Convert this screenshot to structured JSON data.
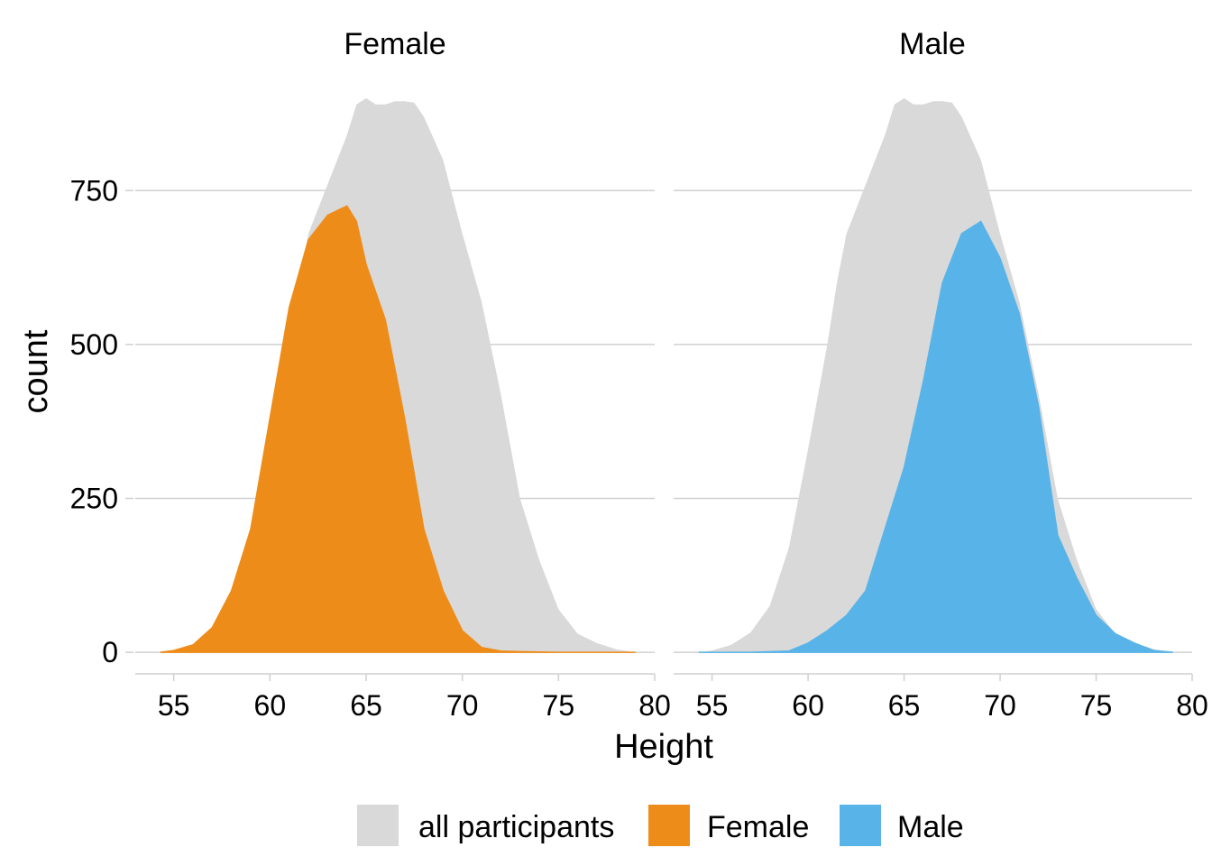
{
  "chart_data": {
    "type": "area",
    "xlabel": "Height",
    "ylabel": "count",
    "xlim": [
      53,
      80
    ],
    "ylim": [
      -35,
      935
    ],
    "x_ticks": [
      55,
      60,
      65,
      70,
      75,
      80
    ],
    "x_tick_labels": [
      "55",
      "60",
      "65",
      "70",
      "75",
      "80"
    ],
    "y_ticks": [
      0,
      250,
      500,
      750
    ],
    "y_tick_labels": [
      "0",
      "250",
      "500",
      "750"
    ],
    "grid": true,
    "legend_position": "bottom",
    "legend": [
      {
        "label": "all participants",
        "color": "#D9D9D9"
      },
      {
        "label": "Female",
        "color": "#EE8C1A"
      },
      {
        "label": "Male",
        "color": "#58B4E8"
      }
    ],
    "background_series": {
      "name": "all participants",
      "color": "#D9D9D9",
      "points": [
        [
          54.3,
          0
        ],
        [
          55,
          3
        ],
        [
          56,
          12
        ],
        [
          57,
          32
        ],
        [
          58,
          75
        ],
        [
          59,
          170
        ],
        [
          60,
          330
        ],
        [
          61,
          500
        ],
        [
          61.5,
          600
        ],
        [
          62,
          680
        ],
        [
          63,
          760
        ],
        [
          64,
          840
        ],
        [
          64.5,
          890
        ],
        [
          65,
          900
        ],
        [
          65.5,
          890
        ],
        [
          66,
          890
        ],
        [
          66.5,
          895
        ],
        [
          67,
          895
        ],
        [
          67.5,
          893
        ],
        [
          68,
          870
        ],
        [
          69,
          800
        ],
        [
          70,
          680
        ],
        [
          71,
          570
        ],
        [
          72,
          420
        ],
        [
          73,
          250
        ],
        [
          74,
          150
        ],
        [
          75,
          70
        ],
        [
          76,
          30
        ],
        [
          77,
          15
        ],
        [
          78,
          5
        ],
        [
          79,
          0
        ]
      ]
    },
    "panels": [
      {
        "title": "Female",
        "series": {
          "name": "Female",
          "color": "#EE8C1A",
          "points": [
            [
              54.3,
              0
            ],
            [
              55,
              3
            ],
            [
              56,
              12
            ],
            [
              57,
              40
            ],
            [
              58,
              100
            ],
            [
              59,
              200
            ],
            [
              60,
              380
            ],
            [
              61,
              560
            ],
            [
              62,
              670
            ],
            [
              63,
              710
            ],
            [
              64,
              725
            ],
            [
              64.5,
              700
            ],
            [
              65,
              630
            ],
            [
              66,
              540
            ],
            [
              67,
              380
            ],
            [
              68,
              200
            ],
            [
              69,
              100
            ],
            [
              70,
              35
            ],
            [
              71,
              8
            ],
            [
              72,
              2
            ],
            [
              73,
              1
            ],
            [
              75,
              0
            ],
            [
              79,
              0
            ]
          ]
        }
      },
      {
        "title": "Male",
        "series": {
          "name": "Male",
          "color": "#58B4E8",
          "points": [
            [
              54.3,
              0
            ],
            [
              57,
              0
            ],
            [
              59,
              2
            ],
            [
              60,
              15
            ],
            [
              61,
              35
            ],
            [
              62,
              60
            ],
            [
              63,
              100
            ],
            [
              64,
              200
            ],
            [
              65,
              300
            ],
            [
              66,
              440
            ],
            [
              67,
              600
            ],
            [
              68,
              680
            ],
            [
              69,
              700
            ],
            [
              70,
              640
            ],
            [
              71,
              550
            ],
            [
              72,
              400
            ],
            [
              73,
              190
            ],
            [
              74,
              120
            ],
            [
              75,
              60
            ],
            [
              76,
              30
            ],
            [
              77,
              15
            ],
            [
              78,
              3
            ],
            [
              79,
              0
            ]
          ]
        }
      }
    ]
  }
}
